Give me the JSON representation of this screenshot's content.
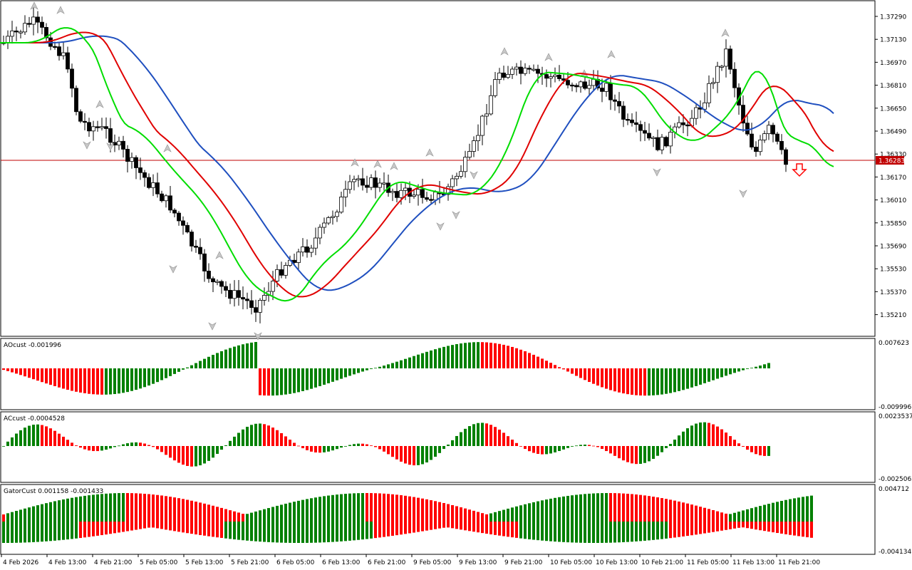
{
  "colors": {
    "background": "#ffffff",
    "border": "#000000",
    "bull_body": "#ffffff",
    "bear_body": "#000000",
    "jaw": "#1f4fbf",
    "teeth": "#e00000",
    "lips": "#00dd00",
    "price_line": "#c00000",
    "hist_up": "#008000",
    "hist_down": "#ff0000",
    "fractal": "#a0a0a0",
    "sell_arrow": "#ff0000"
  },
  "main_chart": {
    "price_axis_labels": [
      "1.37290",
      "1.37130",
      "1.36970",
      "1.36810",
      "1.36650",
      "1.36490",
      "1.36330",
      "1.36170",
      "1.36010",
      "1.35850",
      "1.35690",
      "1.35530",
      "1.35370",
      "1.35210"
    ],
    "current_price": "1.36283",
    "signal_icon": "down-arrow-icon"
  },
  "time_axis_labels": [
    "4 Feb 2026",
    "4 Feb 13:00",
    "4 Feb 21:00",
    "5 Feb 05:00",
    "5 Feb 13:00",
    "5 Feb 21:00",
    "6 Feb 05:00",
    "6 Feb 13:00",
    "6 Feb 21:00",
    "9 Feb 05:00",
    "9 Feb 13:00",
    "9 Feb 21:00",
    "10 Feb 05:00",
    "10 Feb 13:00",
    "10 Feb 21:00",
    "11 Feb 05:00",
    "11 Feb 13:00",
    "11 Feb 21:00"
  ],
  "subwindows": [
    {
      "title": "AOcust -0.001996",
      "max_label": "0.007623",
      "min_label": "-0.009996"
    },
    {
      "title": "ACcust -0.0004528",
      "max_label": "0.0023537",
      "min_label": "-0.0025062"
    },
    {
      "title": "GatorCust 0.001158 -0.001433",
      "max_label": "0.004712",
      "min_label": "-0.004134"
    }
  ]
}
